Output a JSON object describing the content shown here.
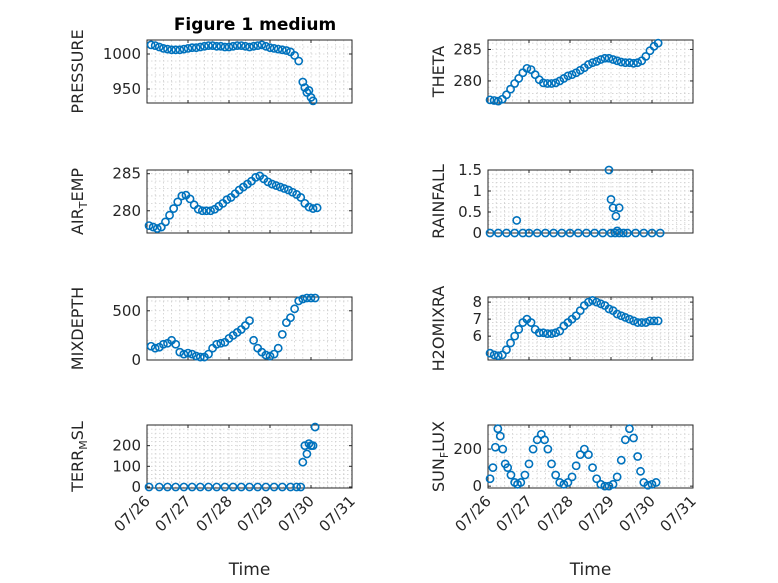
{
  "figure_title": "Figure 1 medium",
  "colors": {
    "marker": "#0072BD",
    "axis": "#262626",
    "grid": "#cfcfcf"
  },
  "chart_data": [
    {
      "type": "scatter",
      "ylabel": "PRESSURE",
      "xlabel": "",
      "title": "Figure 1 medium",
      "xlim": [
        0,
        5
      ],
      "ylim": [
        930,
        1020
      ],
      "xticks": [
        0,
        1,
        2,
        3,
        4,
        5
      ],
      "xticklabels": [
        "",
        "",
        "",
        "",
        "",
        ""
      ],
      "yticks": [
        950,
        1000
      ],
      "yticklabels": [
        "950",
        "1000"
      ],
      "x": [
        0.1,
        0.2,
        0.3,
        0.4,
        0.5,
        0.6,
        0.7,
        0.8,
        0.9,
        1.0,
        1.1,
        1.2,
        1.3,
        1.4,
        1.5,
        1.6,
        1.7,
        1.8,
        1.9,
        2.0,
        2.1,
        2.2,
        2.3,
        2.4,
        2.5,
        2.6,
        2.7,
        2.8,
        2.9,
        3.0,
        3.1,
        3.2,
        3.3,
        3.4,
        3.5,
        3.6,
        3.7,
        3.8,
        3.85,
        3.9,
        3.95,
        4.0,
        4.05
      ],
      "y": [
        1013,
        1012,
        1010,
        1008,
        1007,
        1006,
        1006,
        1006,
        1007,
        1008,
        1009,
        1009,
        1010,
        1011,
        1012,
        1012,
        1011,
        1011,
        1010,
        1010,
        1011,
        1012,
        1012,
        1011,
        1010,
        1011,
        1012,
        1013,
        1011,
        1009,
        1008,
        1007,
        1006,
        1005,
        1003,
        998,
        990,
        960,
        952,
        945,
        948,
        938,
        933
      ]
    },
    {
      "type": "scatter",
      "ylabel": "THETA",
      "xlabel": "",
      "xlim": [
        0,
        5
      ],
      "ylim": [
        276.5,
        286.5
      ],
      "xticks": [
        0,
        1,
        2,
        3,
        4,
        5
      ],
      "xticklabels": [
        "",
        "",
        "",
        "",
        "",
        ""
      ],
      "yticks": [
        280,
        285
      ],
      "yticklabels": [
        "280",
        "285"
      ],
      "x": [
        0.05,
        0.15,
        0.25,
        0.35,
        0.45,
        0.55,
        0.65,
        0.75,
        0.85,
        0.95,
        1.05,
        1.15,
        1.25,
        1.35,
        1.45,
        1.55,
        1.65,
        1.75,
        1.85,
        1.95,
        2.05,
        2.15,
        2.25,
        2.35,
        2.45,
        2.55,
        2.65,
        2.75,
        2.85,
        2.95,
        3.05,
        3.15,
        3.25,
        3.35,
        3.45,
        3.55,
        3.65,
        3.75,
        3.85,
        3.95,
        4.05,
        4.15
      ],
      "y": [
        277.0,
        276.9,
        276.8,
        277.1,
        277.8,
        278.7,
        279.6,
        280.4,
        281.3,
        282.0,
        281.8,
        281.0,
        280.2,
        279.7,
        279.6,
        279.6,
        279.7,
        280.0,
        280.4,
        280.8,
        281.0,
        281.3,
        281.7,
        282.1,
        282.6,
        282.9,
        283.1,
        283.4,
        283.6,
        283.6,
        283.4,
        283.2,
        283.0,
        282.9,
        282.9,
        282.8,
        282.9,
        283.2,
        283.9,
        284.8,
        285.5,
        286.0
      ]
    },
    {
      "type": "scatter",
      "ylabel": "AIR_TEMP",
      "xlabel": "",
      "xlim": [
        0,
        5
      ],
      "ylim": [
        277,
        285.5
      ],
      "xticks": [
        0,
        1,
        2,
        3,
        4,
        5
      ],
      "xticklabels": [
        "",
        "",
        "",
        "",
        "",
        ""
      ],
      "yticks": [
        280,
        285
      ],
      "yticklabels": [
        "280",
        "285"
      ],
      "x": [
        0.05,
        0.15,
        0.25,
        0.35,
        0.45,
        0.55,
        0.65,
        0.75,
        0.85,
        0.95,
        1.05,
        1.15,
        1.25,
        1.35,
        1.45,
        1.55,
        1.65,
        1.75,
        1.85,
        1.95,
        2.05,
        2.15,
        2.25,
        2.35,
        2.45,
        2.55,
        2.65,
        2.75,
        2.85,
        2.95,
        3.05,
        3.15,
        3.25,
        3.35,
        3.45,
        3.55,
        3.65,
        3.75,
        3.85,
        3.95,
        4.05,
        4.15
      ],
      "y": [
        278.0,
        277.8,
        277.6,
        277.8,
        278.5,
        279.4,
        280.3,
        281.2,
        282.0,
        282.1,
        281.6,
        280.8,
        280.2,
        280.0,
        280.0,
        280.0,
        280.2,
        280.6,
        281.0,
        281.5,
        281.8,
        282.3,
        282.8,
        283.2,
        283.6,
        284.0,
        284.5,
        284.7,
        284.3,
        283.9,
        283.6,
        283.4,
        283.2,
        283.0,
        282.8,
        282.5,
        282.2,
        281.8,
        281.0,
        280.5,
        280.3,
        280.4
      ]
    },
    {
      "type": "scatter",
      "ylabel": "RAINFALL",
      "xlabel": "",
      "xlim": [
        0,
        5
      ],
      "ylim": [
        0,
        1.5
      ],
      "xticks": [
        0,
        1,
        2,
        3,
        4,
        5
      ],
      "xticklabels": [
        "",
        "",
        "",
        "",
        "",
        ""
      ],
      "yticks": [
        0,
        0.5,
        1,
        1.5
      ],
      "yticklabels": [
        "0",
        "0.5",
        "1",
        "1.5"
      ],
      "x": [
        0.05,
        0.25,
        0.45,
        0.65,
        0.85,
        1.0,
        1.2,
        1.4,
        1.6,
        1.8,
        2.0,
        2.2,
        2.4,
        2.6,
        2.8,
        3.0,
        3.1,
        3.2,
        3.3,
        3.4,
        3.6,
        3.8,
        4.0,
        4.2,
        0.7,
        2.95,
        3.0,
        3.05,
        3.12,
        3.2,
        3.15
      ],
      "y": [
        0,
        0,
        0,
        0,
        0,
        0,
        0,
        0,
        0,
        0,
        0,
        0,
        0,
        0,
        0,
        0,
        0,
        0,
        0,
        0,
        0,
        0,
        0,
        0,
        0.3,
        1.5,
        0.8,
        0.6,
        0.4,
        0.6,
        0.05
      ]
    },
    {
      "type": "scatter",
      "ylabel": "MIXDEPTH",
      "xlabel": "",
      "xlim": [
        0,
        5
      ],
      "ylim": [
        0,
        640
      ],
      "xticks": [
        0,
        1,
        2,
        3,
        4,
        5
      ],
      "xticklabels": [
        "",
        "",
        "",
        "",
        "",
        ""
      ],
      "yticks": [
        0,
        500
      ],
      "yticklabels": [
        "0",
        "500"
      ],
      "x": [
        0.1,
        0.2,
        0.3,
        0.4,
        0.5,
        0.6,
        0.7,
        0.8,
        0.9,
        1.0,
        1.1,
        1.2,
        1.3,
        1.4,
        1.5,
        1.6,
        1.7,
        1.8,
        1.9,
        2.0,
        2.1,
        2.2,
        2.3,
        2.4,
        2.5,
        2.6,
        2.7,
        2.8,
        2.9,
        3.0,
        3.1,
        3.2,
        3.3,
        3.4,
        3.5,
        3.6,
        3.7,
        3.8,
        3.9,
        4.0,
        4.1
      ],
      "y": [
        140,
        120,
        130,
        160,
        170,
        200,
        160,
        80,
        60,
        70,
        60,
        40,
        30,
        30,
        60,
        120,
        160,
        170,
        180,
        220,
        250,
        280,
        310,
        350,
        400,
        200,
        120,
        80,
        50,
        40,
        60,
        120,
        260,
        380,
        430,
        520,
        600,
        620,
        630,
        630,
        630
      ]
    },
    {
      "type": "scatter",
      "ylabel": "H2OMIXRA",
      "xlabel": "",
      "xlim": [
        0,
        5
      ],
      "ylim": [
        4.6,
        8.3
      ],
      "xticks": [
        0,
        1,
        2,
        3,
        4,
        5
      ],
      "xticklabels": [
        "",
        "",
        "",
        "",
        "",
        ""
      ],
      "yticks": [
        6,
        7,
        8
      ],
      "yticklabels": [
        "6",
        "7",
        "8"
      ],
      "x": [
        0.05,
        0.15,
        0.25,
        0.35,
        0.45,
        0.55,
        0.65,
        0.75,
        0.85,
        0.95,
        1.05,
        1.15,
        1.25,
        1.35,
        1.45,
        1.55,
        1.65,
        1.75,
        1.85,
        1.95,
        2.05,
        2.15,
        2.25,
        2.35,
        2.45,
        2.55,
        2.65,
        2.75,
        2.85,
        2.95,
        3.05,
        3.15,
        3.25,
        3.35,
        3.45,
        3.55,
        3.65,
        3.75,
        3.85,
        3.95,
        4.05,
        4.15
      ],
      "y": [
        5.0,
        4.9,
        4.85,
        4.9,
        5.2,
        5.6,
        6.0,
        6.4,
        6.8,
        7.0,
        6.8,
        6.4,
        6.2,
        6.2,
        6.15,
        6.15,
        6.2,
        6.3,
        6.6,
        6.8,
        7.0,
        7.2,
        7.5,
        7.8,
        8.0,
        8.1,
        8.0,
        7.9,
        7.8,
        7.6,
        7.5,
        7.3,
        7.2,
        7.1,
        7.0,
        6.9,
        6.8,
        6.8,
        6.8,
        6.9,
        6.9,
        6.9
      ]
    },
    {
      "type": "scatter",
      "ylabel": "TERR_MSL",
      "xlabel": "Time",
      "xlim": [
        0,
        5
      ],
      "ylim": [
        -5,
        300
      ],
      "xticks": [
        0,
        1,
        2,
        3,
        4,
        5
      ],
      "xticklabels": [
        "07/26",
        "07/27",
        "07/28",
        "07/29",
        "07/30",
        "07/31"
      ],
      "yticks": [
        0,
        100,
        200
      ],
      "yticklabels": [
        "0",
        "100",
        "200"
      ],
      "x": [
        0.05,
        0.3,
        0.5,
        0.7,
        0.9,
        1.1,
        1.3,
        1.5,
        1.7,
        1.9,
        2.1,
        2.3,
        2.5,
        2.7,
        2.9,
        3.1,
        3.3,
        3.5,
        3.65,
        3.75,
        3.8,
        3.85,
        3.9,
        3.95,
        4.0,
        4.05,
        4.1
      ],
      "y": [
        0,
        0,
        0,
        0,
        0,
        0,
        0,
        0,
        0,
        0,
        0,
        0,
        0,
        0,
        0,
        0,
        0,
        0,
        0,
        0,
        120,
        200,
        160,
        210,
        200,
        200,
        290
      ]
    },
    {
      "type": "scatter",
      "ylabel": "SUN_FLUX",
      "xlabel": "Time",
      "xlim": [
        0,
        5
      ],
      "ylim": [
        -10,
        330
      ],
      "xticks": [
        0,
        1,
        2,
        3,
        4,
        5
      ],
      "xticklabels": [
        "07/26",
        "07/27",
        "07/28",
        "07/29",
        "07/30",
        "07/31"
      ],
      "yticks": [
        0,
        200
      ],
      "yticklabels": [
        "0",
        "200"
      ],
      "x": [
        0.05,
        0.12,
        0.18,
        0.24,
        0.3,
        0.36,
        0.42,
        0.48,
        0.56,
        0.65,
        0.72,
        0.8,
        0.9,
        1.0,
        1.1,
        1.2,
        1.3,
        1.38,
        1.46,
        1.55,
        1.65,
        1.75,
        1.85,
        1.95,
        2.05,
        2.15,
        2.25,
        2.35,
        2.45,
        2.55,
        2.65,
        2.75,
        2.85,
        2.95,
        3.05,
        3.15,
        3.25,
        3.35,
        3.45,
        3.55,
        3.65,
        3.72,
        3.8,
        3.9,
        4.0,
        4.1
      ],
      "y": [
        40,
        100,
        210,
        310,
        270,
        200,
        120,
        100,
        60,
        20,
        10,
        20,
        60,
        120,
        200,
        250,
        280,
        250,
        200,
        120,
        60,
        20,
        10,
        20,
        50,
        110,
        170,
        200,
        170,
        100,
        40,
        10,
        0,
        0,
        10,
        50,
        140,
        250,
        310,
        260,
        160,
        80,
        20,
        5,
        10,
        20
      ]
    }
  ]
}
